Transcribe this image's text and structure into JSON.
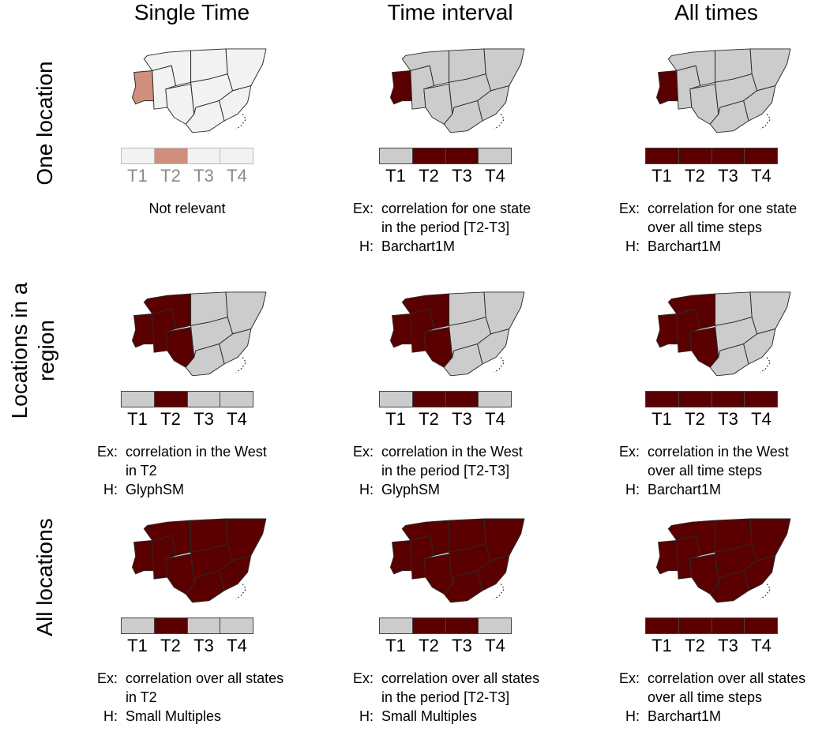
{
  "columns": [
    "Single Time",
    "Time interval",
    "All times"
  ],
  "rows": [
    "One location",
    "Locations in a region",
    "All locations"
  ],
  "time_steps": [
    "T1",
    "T2",
    "T3",
    "T4"
  ],
  "colors": {
    "selected": "#5a0000",
    "unselected": "#cccccc",
    "faded_selected": "#cf8f7c",
    "faded_unselected": "#f2f2f2"
  },
  "cells": [
    {
      "r": 0,
      "c": 0,
      "faded": true,
      "highlight_regions": "one",
      "time_highlight": [
        false,
        true,
        false,
        false
      ],
      "desc_center": "Not relevant"
    },
    {
      "r": 0,
      "c": 1,
      "faded": false,
      "highlight_regions": "one",
      "time_highlight": [
        false,
        true,
        true,
        false
      ],
      "ex_key": "Ex:",
      "ex_line1": "correlation for one state",
      "ex_line2": "in the period [T2-T3]",
      "h_key": "H:",
      "h_value": "Barchart1M"
    },
    {
      "r": 0,
      "c": 2,
      "faded": false,
      "highlight_regions": "one",
      "time_highlight": [
        true,
        true,
        true,
        true
      ],
      "ex_key": "Ex:",
      "ex_line1": "correlation for one state",
      "ex_line2": "over all time steps",
      "h_key": "H:",
      "h_value": "Barchart1M"
    },
    {
      "r": 1,
      "c": 0,
      "faded": false,
      "highlight_regions": "west",
      "time_highlight": [
        false,
        true,
        false,
        false
      ],
      "ex_key": "Ex:",
      "ex_line1": "correlation in the West",
      "ex_line2": "in T2",
      "h_key": "H:",
      "h_value": "GlyphSM"
    },
    {
      "r": 1,
      "c": 1,
      "faded": false,
      "highlight_regions": "west",
      "time_highlight": [
        false,
        true,
        true,
        false
      ],
      "ex_key": "Ex:",
      "ex_line1": "correlation in the West",
      "ex_line2": "in the period [T2-T3]",
      "h_key": "H:",
      "h_value": "GlyphSM"
    },
    {
      "r": 1,
      "c": 2,
      "faded": false,
      "highlight_regions": "west",
      "time_highlight": [
        true,
        true,
        true,
        true
      ],
      "ex_key": "Ex:",
      "ex_line1": "correlation in the West",
      "ex_line2": "over all time steps",
      "h_key": "H:",
      "h_value": "Barchart1M"
    },
    {
      "r": 2,
      "c": 0,
      "faded": false,
      "highlight_regions": "all",
      "time_highlight": [
        false,
        true,
        false,
        false
      ],
      "ex_key": "Ex:",
      "ex_line1": "correlation over all states",
      "ex_line2": "in T2",
      "h_key": "H:",
      "h_value": "Small Multiples"
    },
    {
      "r": 2,
      "c": 1,
      "faded": false,
      "highlight_regions": "all",
      "time_highlight": [
        false,
        true,
        true,
        false
      ],
      "ex_key": "Ex:",
      "ex_line1": "correlation over all states",
      "ex_line2": "in the period [T2-T3]",
      "h_key": "H:",
      "h_value": "Small Multiples"
    },
    {
      "r": 2,
      "c": 2,
      "faded": false,
      "highlight_regions": "all",
      "time_highlight": [
        true,
        true,
        true,
        true
      ],
      "ex_key": "Ex:",
      "ex_line1": "correlation over all states",
      "ex_line2": "over all time steps",
      "h_key": "H:",
      "h_value": "Barchart1M"
    }
  ]
}
